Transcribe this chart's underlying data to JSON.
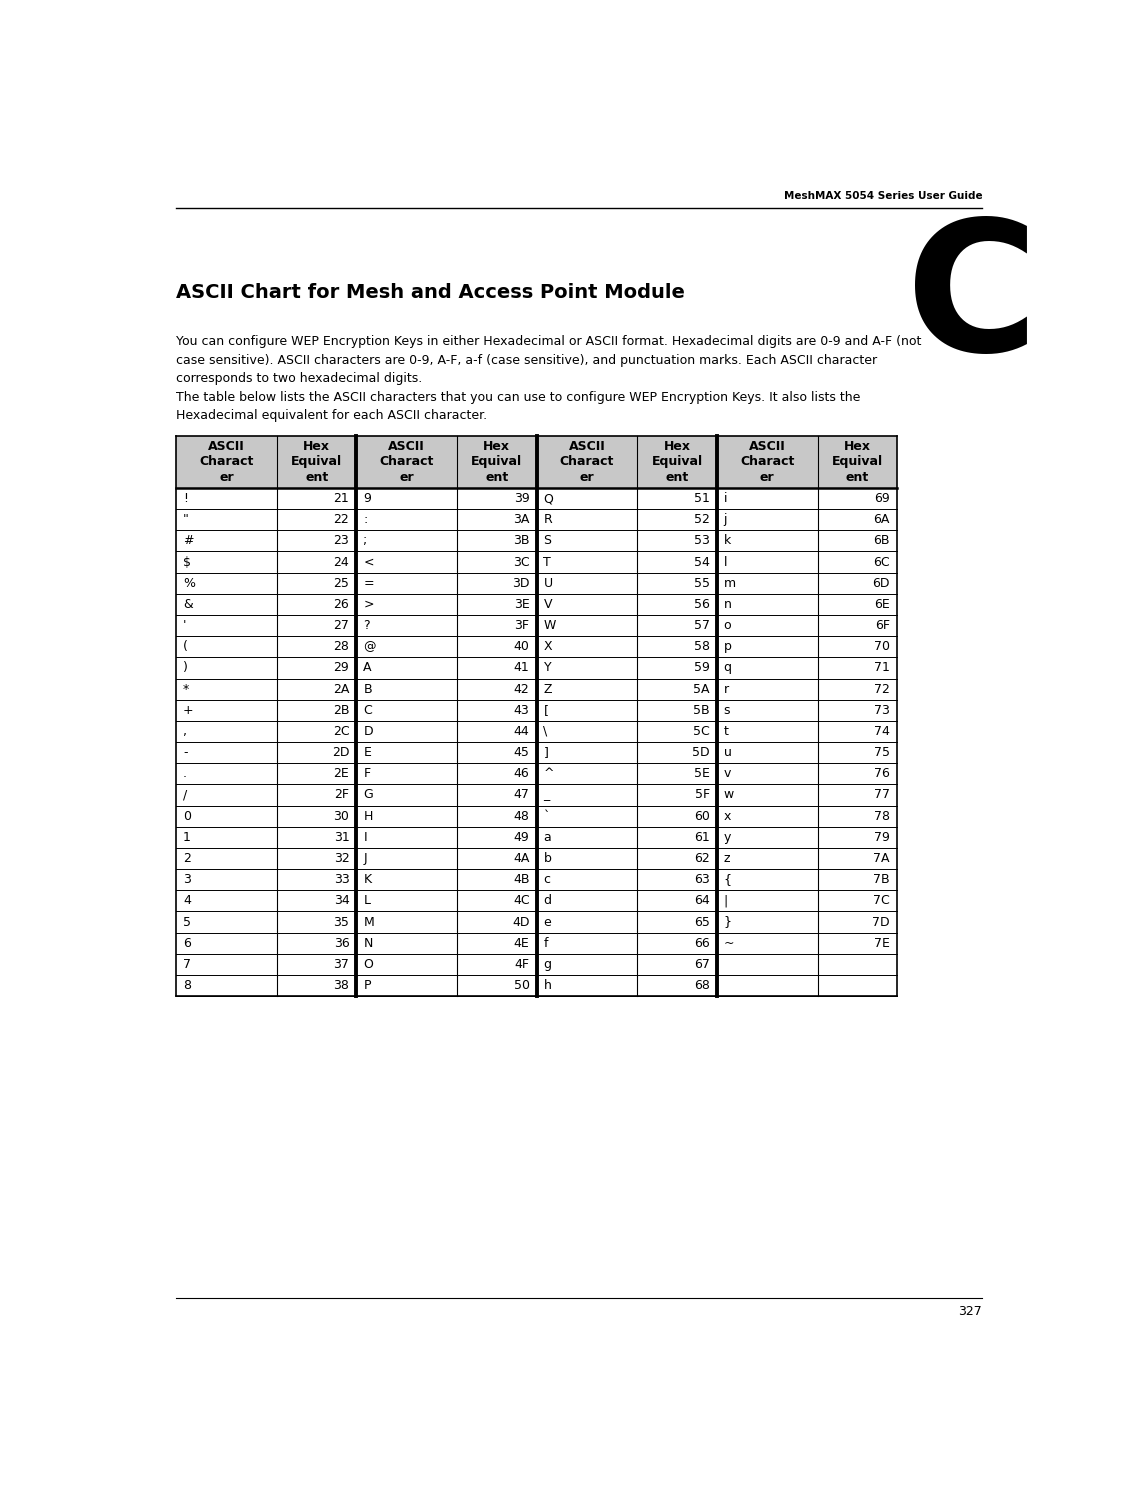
{
  "page_header": "MeshMAX 5054 Series User Guide",
  "chapter_letter": "C",
  "title": "ASCII Chart for Mesh and Access Point Module",
  "para1": "You can configure WEP Encryption Keys in either Hexadecimal or ASCII format. Hexadecimal digits are 0-9 and A-F (not\ncase sensitive). ASCII characters are 0-9, A-F, a-f (case sensitive), and punctuation marks. Each ASCII character\ncorresponds to two hexadecimal digits.",
  "para2": "The table below lists the ASCII characters that you can use to configure WEP Encryption Keys. It also lists the\nHexadecimal equivalent for each ASCII character.",
  "page_footer": "327",
  "table_data": [
    [
      "!",
      "21",
      "9",
      "39",
      "Q",
      "51",
      "i",
      "69"
    ],
    [
      "\"",
      "22",
      ":",
      "3A",
      "R",
      "52",
      "j",
      "6A"
    ],
    [
      "#",
      "23",
      ";",
      "3B",
      "S",
      "53",
      "k",
      "6B"
    ],
    [
      "$",
      "24",
      "<",
      "3C",
      "T",
      "54",
      "l",
      "6C"
    ],
    [
      "%",
      "25",
      "=",
      "3D",
      "U",
      "55",
      "m",
      "6D"
    ],
    [
      "&",
      "26",
      ">",
      "3E",
      "V",
      "56",
      "n",
      "6E"
    ],
    [
      "'",
      "27",
      "?",
      "3F",
      "W",
      "57",
      "o",
      "6F"
    ],
    [
      "(",
      "28",
      "@",
      "40",
      "X",
      "58",
      "p",
      "70"
    ],
    [
      ")",
      "29",
      "A",
      "41",
      "Y",
      "59",
      "q",
      "71"
    ],
    [
      "*",
      "2A",
      "B",
      "42",
      "Z",
      "5A",
      "r",
      "72"
    ],
    [
      "+",
      "2B",
      "C",
      "43",
      "[",
      "5B",
      "s",
      "73"
    ],
    [
      ",",
      "2C",
      "D",
      "44",
      "\\",
      "5C",
      "t",
      "74"
    ],
    [
      "-",
      "2D",
      "E",
      "45",
      "]",
      "5D",
      "u",
      "75"
    ],
    [
      ".",
      "2E",
      "F",
      "46",
      "^",
      "5E",
      "v",
      "76"
    ],
    [
      "/",
      "2F",
      "G",
      "47",
      "_",
      "5F",
      "w",
      "77"
    ],
    [
      "0",
      "30",
      "H",
      "48",
      "`",
      "60",
      "x",
      "78"
    ],
    [
      "1",
      "31",
      "I",
      "49",
      "a",
      "61",
      "y",
      "79"
    ],
    [
      "2",
      "32",
      "J",
      "4A",
      "b",
      "62",
      "z",
      "7A"
    ],
    [
      "3",
      "33",
      "K",
      "4B",
      "c",
      "63",
      "{",
      "7B"
    ],
    [
      "4",
      "34",
      "L",
      "4C",
      "d",
      "64",
      "|",
      "7C"
    ],
    [
      "5",
      "35",
      "M",
      "4D",
      "e",
      "65",
      "}",
      "7D"
    ],
    [
      "6",
      "36",
      "N",
      "4E",
      "f",
      "66",
      "~",
      "7E"
    ],
    [
      "7",
      "37",
      "O",
      "4F",
      "g",
      "67",
      "",
      ""
    ],
    [
      "8",
      "38",
      "P",
      "50",
      "h",
      "68",
      "",
      ""
    ]
  ],
  "bg_color": "#ffffff",
  "header_bg": "#c8c8c8"
}
